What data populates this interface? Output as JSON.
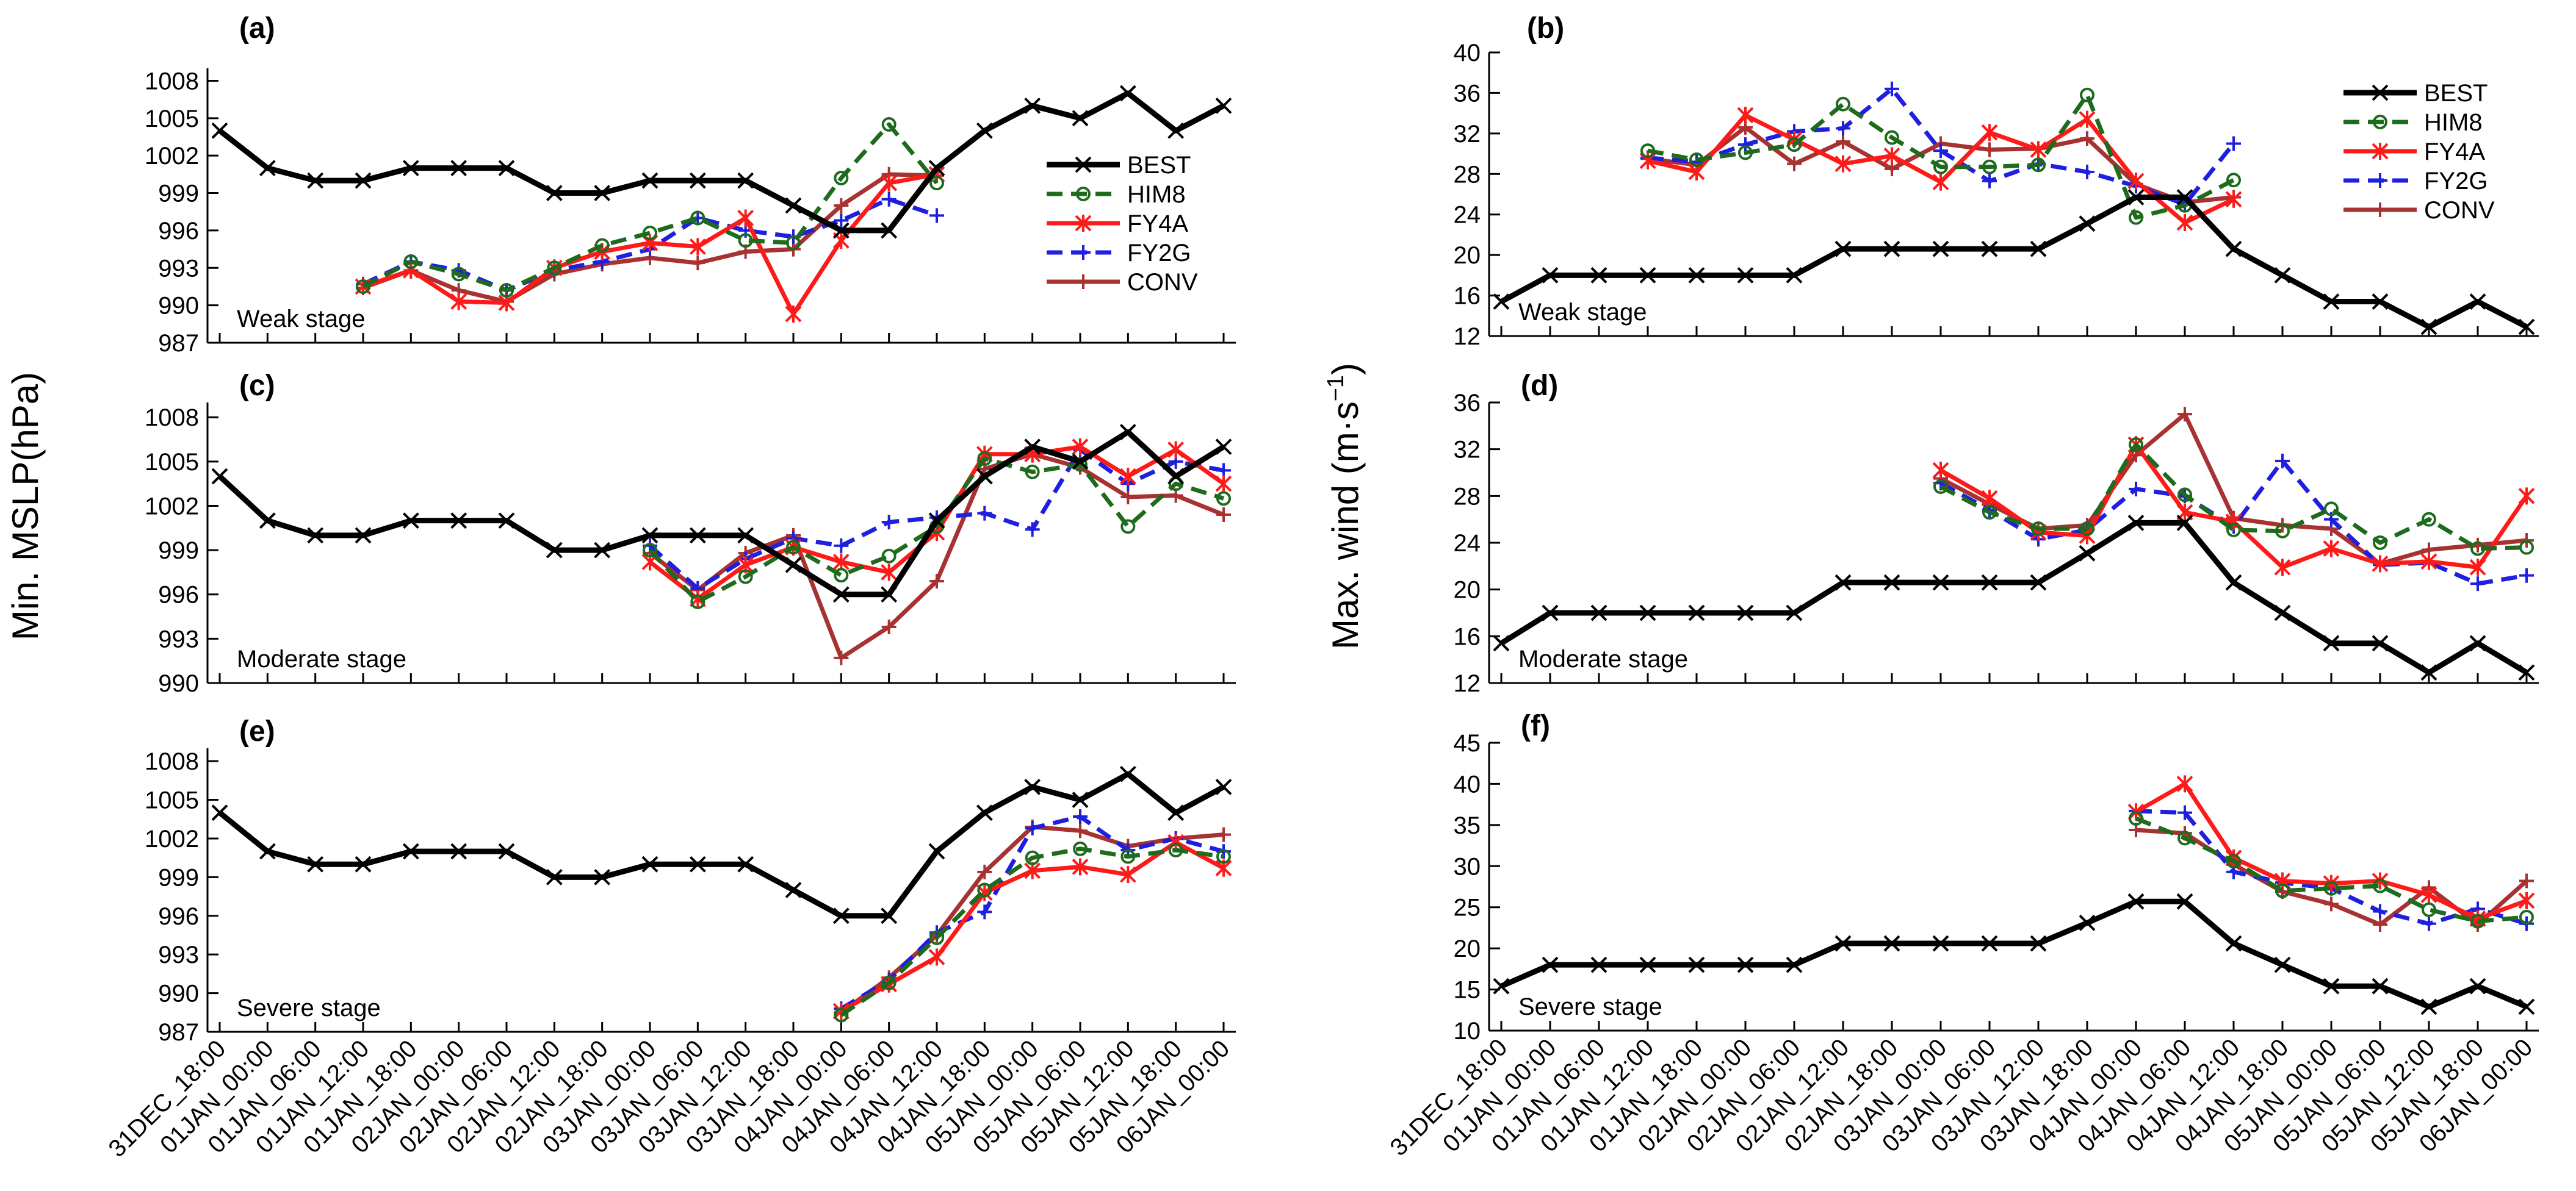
{
  "figure": {
    "left_ylabel": "Min. MSLP(hPa)",
    "right_ylabel_main": "Max. wind (m·s",
    "right_ylabel_sup": "−1",
    "right_ylabel_end": ")"
  },
  "series_styles": [
    {
      "name": "BEST",
      "color": "#000000",
      "dash": "",
      "width": 9,
      "marker": "x"
    },
    {
      "name": "HIM8",
      "color": "#1e6b1e",
      "dash": "26 14",
      "width": 7,
      "marker": "circle"
    },
    {
      "name": "FY4A",
      "color": "#ff1a1a",
      "dash": "",
      "width": 7,
      "marker": "star"
    },
    {
      "name": "FY2G",
      "color": "#1f1fe0",
      "dash": "26 14",
      "width": 7,
      "marker": "plus"
    },
    {
      "name": "CONV",
      "color": "#a83232",
      "dash": "",
      "width": 7,
      "marker": "plus"
    }
  ],
  "x_categories": [
    "31DEC_18:00",
    "01JAN_00:00",
    "01JAN_06:00",
    "01JAN_12:00",
    "01JAN_18:00",
    "02JAN_00:00",
    "02JAN_06:00",
    "02JAN_12:00",
    "02JAN_18:00",
    "03JAN_00:00",
    "03JAN_06:00",
    "03JAN_12:00",
    "03JAN_18:00",
    "04JAN_00:00",
    "04JAN_06:00",
    "04JAN_12:00",
    "04JAN_18:00",
    "05JAN_00:00",
    "05JAN_06:00",
    "05JAN_12:00",
    "05JAN_18:00",
    "06JAN_00:00"
  ],
  "chart_data": [
    {
      "type": "line",
      "panel": "(a)",
      "stage": "Weak stage",
      "ylabel": "Min. MSLP(hPa)",
      "ylim": [
        987,
        1009
      ],
      "yticks": [
        987,
        990,
        993,
        996,
        999,
        1002,
        1005,
        1008
      ],
      "legend": [
        "BEST",
        "HIM8",
        "FY4A",
        "FY2G",
        "CONV"
      ],
      "legend_position": "right",
      "series": [
        {
          "name": "BEST",
          "start": 0,
          "values": [
            1004,
            1001,
            1000,
            1000,
            1001,
            1001,
            1001,
            999,
            999,
            1000,
            1000,
            1000,
            998,
            996,
            996,
            1001,
            1004,
            1006,
            1005,
            1007,
            1004,
            1006
          ]
        },
        {
          "name": "HIM8",
          "start": 3,
          "values": [
            991.5,
            993.5,
            992.5,
            991.2,
            993,
            994.8,
            995.8,
            997,
            995.2,
            995,
            1000.2,
            1004.5,
            999.8
          ]
        },
        {
          "name": "FY4A",
          "start": 3,
          "values": [
            991.5,
            992.8,
            990.3,
            990.2,
            993,
            994.3,
            995,
            994.7,
            997,
            989.3,
            995.2,
            999.8,
            1000.5
          ]
        },
        {
          "name": "FY2G",
          "start": 3,
          "values": [
            991.7,
            993.5,
            992.8,
            991.2,
            992.8,
            993.5,
            994.5,
            997,
            996,
            995.5,
            996.8,
            998.5,
            997.2
          ]
        },
        {
          "name": "CONV",
          "start": 3,
          "values": [
            991.4,
            992.8,
            991.2,
            990.3,
            992.5,
            993.3,
            993.8,
            993.4,
            994.3,
            994.5,
            998,
            1000.5,
            1000.4
          ]
        }
      ]
    },
    {
      "type": "line",
      "panel": "(b)",
      "stage": "Weak stage",
      "ylabel": "Max. wind (m·s−1)",
      "ylim": [
        12,
        40
      ],
      "yticks": [
        12,
        16,
        20,
        24,
        28,
        32,
        36,
        40
      ],
      "legend": [
        "BEST",
        "HIM8",
        "FY4A",
        "FY2G",
        "CONV"
      ],
      "legend_position": "top-right",
      "series": [
        {
          "name": "BEST",
          "start": 0,
          "values": [
            15.4,
            18,
            18,
            18,
            18,
            18,
            18,
            20.6,
            20.6,
            20.6,
            20.6,
            20.6,
            23.1,
            25.7,
            25.7,
            20.6,
            18,
            15.4,
            15.4,
            12.9,
            15.4,
            12.9
          ]
        },
        {
          "name": "HIM8",
          "start": 3,
          "values": [
            30.3,
            29.4,
            30.1,
            30.9,
            34.9,
            31.6,
            28.7,
            28.7,
            28.9,
            35.8,
            23.7,
            24.9,
            27.4
          ]
        },
        {
          "name": "FY4A",
          "start": 3,
          "values": [
            29.3,
            28.2,
            33.8,
            31.4,
            29,
            29.8,
            27.2,
            32.1,
            30.4,
            33.4,
            27.3,
            23.2,
            25.5
          ]
        },
        {
          "name": "FY2G",
          "start": 3,
          "values": [
            29.6,
            29.2,
            30.9,
            32.2,
            32.5,
            36.4,
            30.3,
            27.3,
            29,
            28.2,
            26.8,
            25,
            31
          ]
        },
        {
          "name": "CONV",
          "start": 3,
          "values": [
            29.5,
            28.9,
            32.6,
            29,
            31.2,
            28.5,
            31,
            30.4,
            30.5,
            31.5,
            27,
            25.2,
            25.7
          ]
        }
      ]
    },
    {
      "type": "line",
      "panel": "(c)",
      "stage": "Moderate stage",
      "ylabel": "Min. MSLP(hPa)",
      "ylim": [
        990,
        1009
      ],
      "yticks": [
        990,
        993,
        996,
        999,
        1002,
        1005,
        1008
      ],
      "series": [
        {
          "name": "BEST",
          "start": 0,
          "values": [
            1004,
            1001,
            1000,
            1000,
            1001,
            1001,
            1001,
            999,
            999,
            1000,
            1000,
            1000,
            998,
            996,
            996,
            1001,
            1004,
            1006,
            1005,
            1007,
            1004,
            1006
          ]
        },
        {
          "name": "HIM8",
          "start": 9,
          "values": [
            999,
            995.5,
            997.2,
            999.2,
            997.3,
            998.6,
            1000.6,
            1005.2,
            1004.3,
            1004.8,
            1000.6,
            1003.5,
            1002.5
          ]
        },
        {
          "name": "FY4A",
          "start": 9,
          "values": [
            998.2,
            995.7,
            998,
            999.2,
            998.2,
            997.5,
            1000.2,
            1005.5,
            1005.5,
            1006,
            1004,
            1005.8,
            1003.5
          ]
        },
        {
          "name": "FY2G",
          "start": 9,
          "values": [
            999.3,
            996.4,
            998.4,
            999.8,
            999.3,
            1000.9,
            1001.2,
            1001.5,
            1000.4,
            1005.8,
            1003.5,
            1005,
            1004.4
          ]
        },
        {
          "name": "CONV",
          "start": 9,
          "values": [
            998.8,
            996.3,
            998.8,
            1000,
            991.7,
            993.8,
            996.9,
            1004.5,
            1005.5,
            1004.6,
            1002.6,
            1002.7,
            1001.4
          ]
        }
      ]
    },
    {
      "type": "line",
      "panel": "(d)",
      "stage": "Moderate stage",
      "ylabel": "Max. wind (m·s−1)",
      "ylim": [
        12,
        36
      ],
      "yticks": [
        12,
        16,
        20,
        24,
        28,
        32,
        36
      ],
      "series": [
        {
          "name": "BEST",
          "start": 0,
          "values": [
            15.4,
            18,
            18,
            18,
            18,
            18,
            18,
            20.6,
            20.6,
            20.6,
            20.6,
            20.6,
            23.1,
            25.7,
            25.7,
            20.6,
            18,
            15.4,
            15.4,
            12.9,
            15.4,
            12.9
          ]
        },
        {
          "name": "HIM8",
          "start": 9,
          "values": [
            28.8,
            26.6,
            25.2,
            25.2,
            32.4,
            28.1,
            25.1,
            25,
            26.9,
            24,
            26,
            23.5,
            23.6
          ]
        },
        {
          "name": "FY4A",
          "start": 9,
          "values": [
            30.2,
            27.8,
            24.9,
            24.6,
            32.4,
            26.6,
            25.8,
            21.9,
            23.5,
            22.2,
            22.4,
            21.9,
            28
          ]
        },
        {
          "name": "FY2G",
          "start": 9,
          "values": [
            29.1,
            26.8,
            24.3,
            25.1,
            28.6,
            28,
            25.4,
            31,
            26,
            22.1,
            22.3,
            20.5,
            21.2
          ]
        },
        {
          "name": "CONV",
          "start": 9,
          "values": [
            29.5,
            27.3,
            25.2,
            25.5,
            31.5,
            35,
            26.1,
            25.5,
            25.2,
            22.2,
            23.4,
            23.8,
            24.2
          ]
        }
      ]
    },
    {
      "type": "line",
      "panel": "(e)",
      "stage": "Severe stage",
      "ylabel": "Min. MSLP(hPa)",
      "ylim": [
        987,
        1009
      ],
      "yticks": [
        987,
        990,
        993,
        996,
        999,
        1002,
        1005,
        1008
      ],
      "series": [
        {
          "name": "BEST",
          "start": 0,
          "values": [
            1004,
            1001,
            1000,
            1000,
            1001,
            1001,
            1001,
            999,
            999,
            1000,
            1000,
            1000,
            998,
            996,
            996,
            1001,
            1004,
            1006,
            1005,
            1007,
            1004,
            1006
          ]
        },
        {
          "name": "HIM8",
          "start": 13,
          "values": [
            988.3,
            990.8,
            994.3,
            998,
            1000.5,
            1001.2,
            1000.6,
            1001.1,
            1000.6
          ]
        },
        {
          "name": "FY4A",
          "start": 13,
          "values": [
            988.6,
            990.7,
            992.8,
            997.8,
            999.5,
            999.8,
            999.2,
            1001.7,
            999.7
          ]
        },
        {
          "name": "FY2G",
          "start": 13,
          "values": [
            988.8,
            991,
            994.7,
            996.3,
            1002.8,
            1003.7,
            1001.1,
            1002,
            1001
          ]
        },
        {
          "name": "CONV",
          "start": 13,
          "values": [
            988.5,
            991.2,
            994.5,
            999.4,
            1002.9,
            1002.6,
            1001.4,
            1002,
            1002.3
          ]
        }
      ]
    },
    {
      "type": "line",
      "panel": "(f)",
      "stage": "Severe stage",
      "ylabel": "Max. wind (m·s−1)",
      "ylim": [
        10,
        45
      ],
      "yticks": [
        10,
        15,
        20,
        25,
        30,
        35,
        40,
        45
      ],
      "series": [
        {
          "name": "BEST",
          "start": 0,
          "values": [
            15.4,
            18,
            18,
            18,
            18,
            18,
            18,
            20.6,
            20.6,
            20.6,
            20.6,
            20.6,
            23.1,
            25.7,
            25.7,
            20.6,
            18,
            15.4,
            15.4,
            12.9,
            15.4,
            12.9
          ]
        },
        {
          "name": "HIM8",
          "start": 13,
          "values": [
            35.8,
            33.4,
            30.6,
            27,
            27.3,
            27.6,
            24.7,
            23.3,
            23.8
          ]
        },
        {
          "name": "FY4A",
          "start": 13,
          "values": [
            36.6,
            40,
            31,
            28.2,
            27.9,
            28.2,
            26.5,
            23.6,
            25.8
          ]
        },
        {
          "name": "FY2G",
          "start": 13,
          "values": [
            36.7,
            36.5,
            29.3,
            28,
            27.3,
            24.5,
            23,
            24.8,
            23
          ]
        },
        {
          "name": "CONV",
          "start": 13,
          "values": [
            34.4,
            34,
            30.2,
            26.9,
            25.4,
            22.9,
            27.4,
            22.9,
            28.2
          ]
        }
      ]
    }
  ]
}
